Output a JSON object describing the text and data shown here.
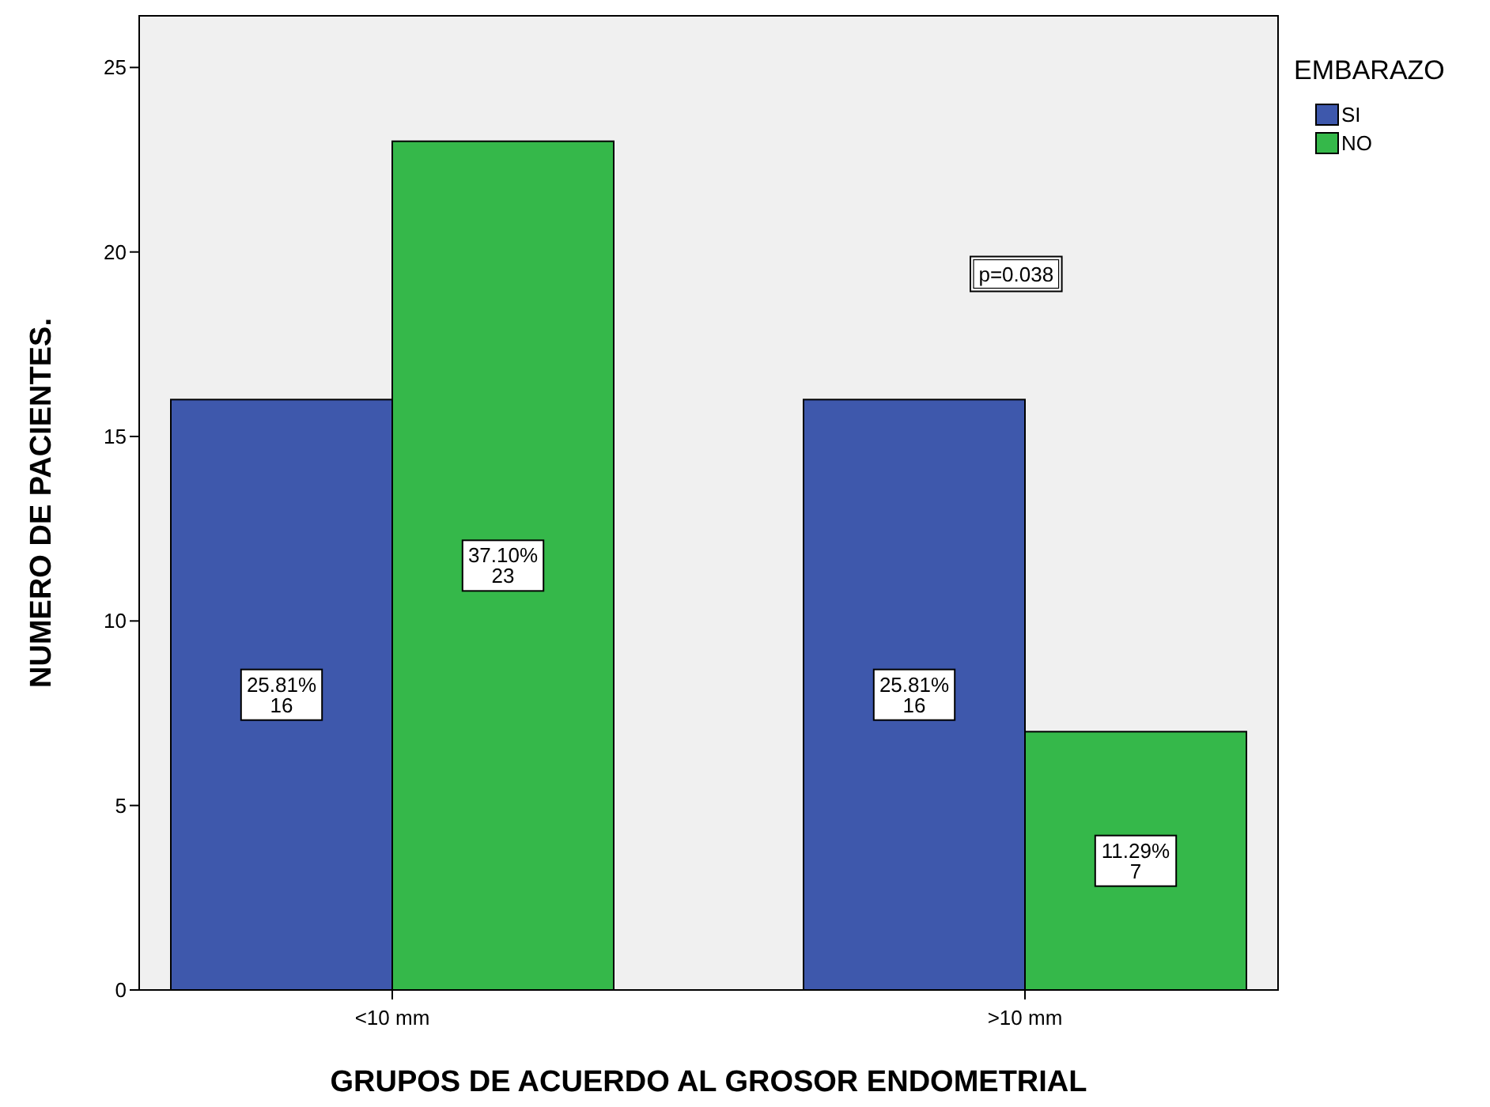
{
  "chart_data": {
    "type": "bar",
    "xlabel": "GRUPOS DE ACUERDO AL GROSOR ENDOMETRIAL",
    "ylabel": "NUMERO DE PACIENTES.",
    "legend_title": "EMBARAZO",
    "categories": [
      "<10 mm",
      ">10 mm"
    ],
    "series": [
      {
        "name": "SI",
        "color": "#3e58ac",
        "values": [
          16,
          16
        ],
        "value_labels": [
          "25.81%\n16",
          "25.81%\n16"
        ]
      },
      {
        "name": "NO",
        "color": "#35b84a",
        "values": [
          23,
          7
        ],
        "value_labels": [
          "37.10%\n23",
          "11.29%\n7"
        ]
      }
    ],
    "ylim": [
      0,
      26.4
    ],
    "yticks": [
      0,
      5,
      10,
      15,
      20,
      25
    ],
    "grid": false,
    "legend": "top right",
    "annotations": [
      "p=0.038"
    ]
  }
}
